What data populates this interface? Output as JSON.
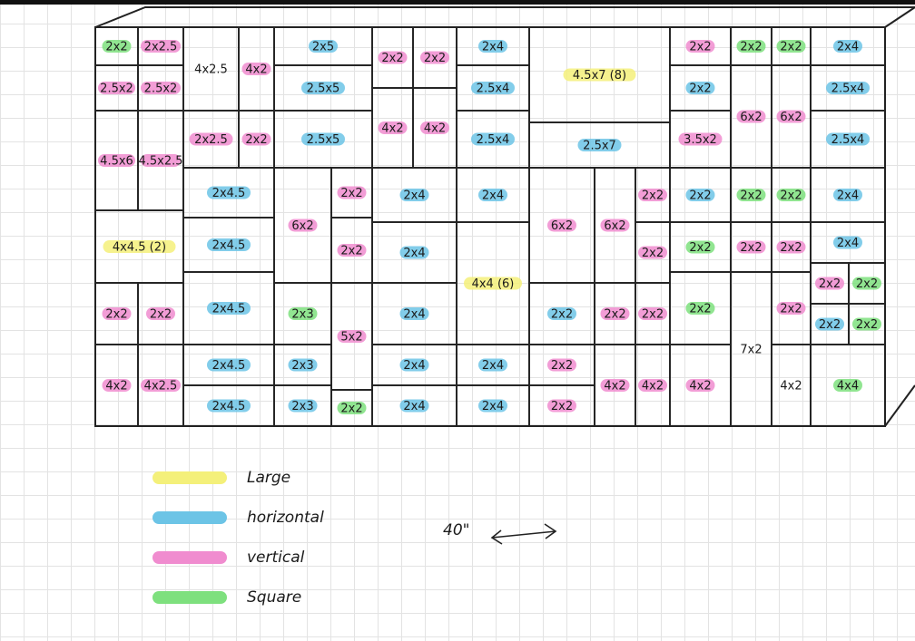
{
  "cells": [
    {
      "label": "2x2",
      "color": "#7ee07e"
    },
    {
      "label": "2x2.5",
      "color": "#f08ccf"
    },
    {
      "label": "2.5x2",
      "color": "#f08ccf"
    },
    {
      "label": "2.5x2",
      "color": "#f08ccf"
    },
    {
      "label": "4.5x6",
      "color": "#f08ccf"
    },
    {
      "label": "4.5x2.5",
      "color": "#f08ccf"
    },
    {
      "label": "4x4.5 (2)",
      "color": "#f4f07a"
    },
    {
      "label": "2x2",
      "color": "#f08ccf"
    },
    {
      "label": "2x2",
      "color": "#f08ccf"
    },
    {
      "label": "4x2",
      "color": "#f08ccf"
    },
    {
      "label": "4x2.5",
      "color": "#f08ccf"
    },
    {
      "label": "4x2.5"
    },
    {
      "label": "4x2",
      "color": "#f08ccf"
    },
    {
      "label": "2x2.5",
      "color": "#f08ccf"
    },
    {
      "label": "2x2",
      "color": "#f08ccf"
    },
    {
      "label": "2x4.5",
      "color": "#6cc4e6"
    },
    {
      "label": "2x4.5",
      "color": "#6cc4e6"
    },
    {
      "label": "2x4.5",
      "color": "#6cc4e6"
    },
    {
      "label": "2x4.5",
      "color": "#6cc4e6"
    },
    {
      "label": "2x4.5",
      "color": "#6cc4e6"
    },
    {
      "label": "2x5",
      "color": "#6cc4e6"
    },
    {
      "label": "2.5x5",
      "color": "#6cc4e6"
    },
    {
      "label": "2.5x5",
      "color": "#6cc4e6"
    },
    {
      "label": "6x2",
      "color": "#f08ccf"
    },
    {
      "label": "2x2",
      "color": "#f08ccf"
    },
    {
      "label": "2x2",
      "color": "#f08ccf"
    },
    {
      "label": "2x3",
      "color": "#7ee07e"
    },
    {
      "label": "5x2",
      "color": "#f08ccf"
    },
    {
      "label": "2x3",
      "color": "#6cc4e6"
    },
    {
      "label": "2x3",
      "color": "#6cc4e6"
    },
    {
      "label": "2x2",
      "color": "#7ee07e"
    },
    {
      "label": "2x2",
      "color": "#f08ccf"
    },
    {
      "label": "2x2",
      "color": "#f08ccf"
    },
    {
      "label": "4x2",
      "color": "#f08ccf"
    },
    {
      "label": "4x2",
      "color": "#f08ccf"
    },
    {
      "label": "2x4",
      "color": "#6cc4e6"
    },
    {
      "label": "2x4",
      "color": "#6cc4e6"
    },
    {
      "label": "2x4",
      "color": "#6cc4e6"
    },
    {
      "label": "2x4",
      "color": "#6cc4e6"
    },
    {
      "label": "2x4",
      "color": "#6cc4e6"
    },
    {
      "label": "2x4",
      "color": "#6cc4e6"
    },
    {
      "label": "2.5x4",
      "color": "#6cc4e6"
    },
    {
      "label": "2.5x4",
      "color": "#6cc4e6"
    },
    {
      "label": "2x4",
      "color": "#6cc4e6"
    },
    {
      "label": "4x4 (6)",
      "color": "#f4f07a"
    },
    {
      "label": "2x4",
      "color": "#6cc4e6"
    },
    {
      "label": "2x4",
      "color": "#6cc4e6"
    },
    {
      "label": "4.5x7 (8)",
      "color": "#f4f07a"
    },
    {
      "label": "2.5x7",
      "color": "#6cc4e6"
    },
    {
      "label": "6x2",
      "color": "#f08ccf"
    },
    {
      "label": "6x2",
      "color": "#f08ccf"
    },
    {
      "label": "2x2",
      "color": "#f08ccf"
    },
    {
      "label": "2x2",
      "color": "#f08ccf"
    },
    {
      "label": "2x2",
      "color": "#6cc4e6"
    },
    {
      "label": "2x2",
      "color": "#f08ccf"
    },
    {
      "label": "2x2",
      "color": "#f08ccf"
    },
    {
      "label": "2x2",
      "color": "#f08ccf"
    },
    {
      "label": "2x2",
      "color": "#f08ccf"
    },
    {
      "label": "4x2",
      "color": "#f08ccf"
    },
    {
      "label": "4x2",
      "color": "#f08ccf"
    },
    {
      "label": "2x2",
      "color": "#f08ccf"
    },
    {
      "label": "2x2",
      "color": "#7ee07e"
    },
    {
      "label": "2x2",
      "color": "#7ee07e"
    },
    {
      "label": "2x2",
      "color": "#6cc4e6"
    },
    {
      "label": "6x2",
      "color": "#f08ccf"
    },
    {
      "label": "6x2",
      "color": "#f08ccf"
    },
    {
      "label": "3.5x2",
      "color": "#f08ccf"
    },
    {
      "label": "2x2",
      "color": "#6cc4e6"
    },
    {
      "label": "2x2",
      "color": "#7ee07e"
    },
    {
      "label": "2x2",
      "color": "#7ee07e"
    },
    {
      "label": "2x2",
      "color": "#7ee07e"
    },
    {
      "label": "2x2",
      "color": "#f08ccf"
    },
    {
      "label": "2x2",
      "color": "#f08ccf"
    },
    {
      "label": "2x2",
      "color": "#7ee07e"
    },
    {
      "label": "7x2"
    },
    {
      "label": "2x2",
      "color": "#f08ccf"
    },
    {
      "label": "4x2",
      "color": "#f08ccf"
    },
    {
      "label": "4x2"
    },
    {
      "label": "2x4",
      "color": "#6cc4e6"
    },
    {
      "label": "2.5x4",
      "color": "#6cc4e6"
    },
    {
      "label": "2.5x4",
      "color": "#6cc4e6"
    },
    {
      "label": "2x4",
      "color": "#6cc4e6"
    },
    {
      "label": "2x4",
      "color": "#6cc4e6"
    },
    {
      "label": "2x2",
      "color": "#f08ccf"
    },
    {
      "label": "2x2",
      "color": "#7ee07e"
    },
    {
      "label": "2x2",
      "color": "#6cc4e6"
    },
    {
      "label": "2x2",
      "color": "#7ee07e"
    },
    {
      "label": "4x4",
      "color": "#7ee07e"
    }
  ],
  "legend": [
    {
      "label": "Large",
      "color": "#f4f07a"
    },
    {
      "label": "horizontal",
      "color": "#6cc4e6"
    },
    {
      "label": "vertical",
      "color": "#f08ccf"
    },
    {
      "label": "Square",
      "color": "#7ee07e"
    }
  ],
  "annotation": "40\""
}
